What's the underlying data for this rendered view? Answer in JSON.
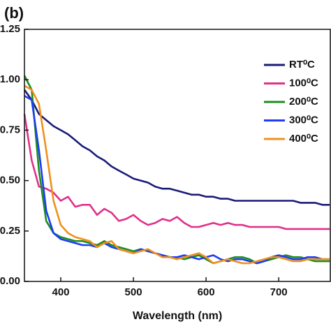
{
  "chart_data": {
    "type": "line",
    "panel_label": "(b)",
    "xlabel": "Wavelength (nm)",
    "x": [
      350,
      360,
      370,
      380,
      390,
      400,
      410,
      420,
      430,
      440,
      450,
      460,
      470,
      480,
      490,
      500,
      510,
      520,
      530,
      540,
      550,
      560,
      570,
      580,
      590,
      600,
      610,
      620,
      630,
      640,
      650,
      660,
      670,
      680,
      690,
      700,
      710,
      720,
      730,
      740,
      750,
      760,
      770
    ],
    "series": [
      {
        "name": "RT⁰C",
        "color": "#1b1b78",
        "values": [
          0.95,
          0.9,
          0.83,
          0.8,
          0.77,
          0.75,
          0.73,
          0.7,
          0.67,
          0.65,
          0.62,
          0.6,
          0.57,
          0.55,
          0.53,
          0.51,
          0.5,
          0.49,
          0.47,
          0.46,
          0.46,
          0.45,
          0.44,
          0.43,
          0.43,
          0.42,
          0.42,
          0.41,
          0.41,
          0.4,
          0.4,
          0.4,
          0.4,
          0.4,
          0.4,
          0.4,
          0.4,
          0.4,
          0.39,
          0.39,
          0.39,
          0.38,
          0.38
        ]
      },
      {
        "name": "100⁰C",
        "color": "#e0308a",
        "values": [
          0.83,
          0.6,
          0.47,
          0.46,
          0.44,
          0.4,
          0.42,
          0.37,
          0.38,
          0.38,
          0.33,
          0.36,
          0.34,
          0.3,
          0.31,
          0.33,
          0.3,
          0.28,
          0.29,
          0.31,
          0.3,
          0.32,
          0.29,
          0.27,
          0.27,
          0.28,
          0.29,
          0.28,
          0.29,
          0.28,
          0.28,
          0.27,
          0.27,
          0.27,
          0.27,
          0.27,
          0.26,
          0.26,
          0.26,
          0.26,
          0.26,
          0.26,
          0.26
        ]
      },
      {
        "name": "200⁰C",
        "color": "#1e8c1e",
        "values": [
          1.02,
          0.95,
          0.55,
          0.3,
          0.24,
          0.22,
          0.21,
          0.2,
          0.2,
          0.19,
          0.18,
          0.2,
          0.18,
          0.17,
          0.16,
          0.15,
          0.16,
          0.15,
          0.14,
          0.13,
          0.12,
          0.12,
          0.11,
          0.12,
          0.13,
          0.11,
          0.09,
          0.1,
          0.11,
          0.12,
          0.12,
          0.11,
          0.09,
          0.1,
          0.11,
          0.12,
          0.13,
          0.12,
          0.12,
          0.11,
          0.1,
          0.1,
          0.1
        ]
      },
      {
        "name": "300⁰C",
        "color": "#1c3cf5",
        "values": [
          0.92,
          0.9,
          0.65,
          0.35,
          0.24,
          0.21,
          0.2,
          0.19,
          0.18,
          0.18,
          0.17,
          0.19,
          0.17,
          0.16,
          0.15,
          0.14,
          0.16,
          0.15,
          0.14,
          0.13,
          0.12,
          0.12,
          0.13,
          0.12,
          0.11,
          0.12,
          0.13,
          0.11,
          0.1,
          0.11,
          0.11,
          0.1,
          0.09,
          0.1,
          0.12,
          0.13,
          0.12,
          0.11,
          0.11,
          0.12,
          0.12,
          0.11,
          0.11
        ]
      },
      {
        "name": "400⁰C",
        "color": "#f0901c",
        "values": [
          0.97,
          0.95,
          0.88,
          0.65,
          0.4,
          0.28,
          0.24,
          0.22,
          0.21,
          0.2,
          0.17,
          0.19,
          0.2,
          0.16,
          0.15,
          0.14,
          0.15,
          0.16,
          0.14,
          0.12,
          0.12,
          0.11,
          0.12,
          0.13,
          0.14,
          0.12,
          0.09,
          0.1,
          0.11,
          0.1,
          0.09,
          0.09,
          0.1,
          0.11,
          0.12,
          0.12,
          0.11,
          0.1,
          0.1,
          0.11,
          0.11,
          0.11,
          0.11
        ]
      }
    ],
    "xlim": [
      350,
      771
    ],
    "xticks": [
      400,
      500,
      600,
      700
    ],
    "ylim": [
      0,
      1.25
    ],
    "yticks": [
      {
        "value": 0,
        "label": "0.00"
      },
      {
        "value": 0.25,
        "label": "0.25"
      },
      {
        "value": 0.5,
        "label": "0.50"
      },
      {
        "value": 0.75,
        "label": "0.75"
      },
      {
        "value": 1.0,
        "label": "1.00"
      },
      {
        "value": 1.25,
        "label": "1.25"
      }
    ],
    "legend": "upper right"
  }
}
